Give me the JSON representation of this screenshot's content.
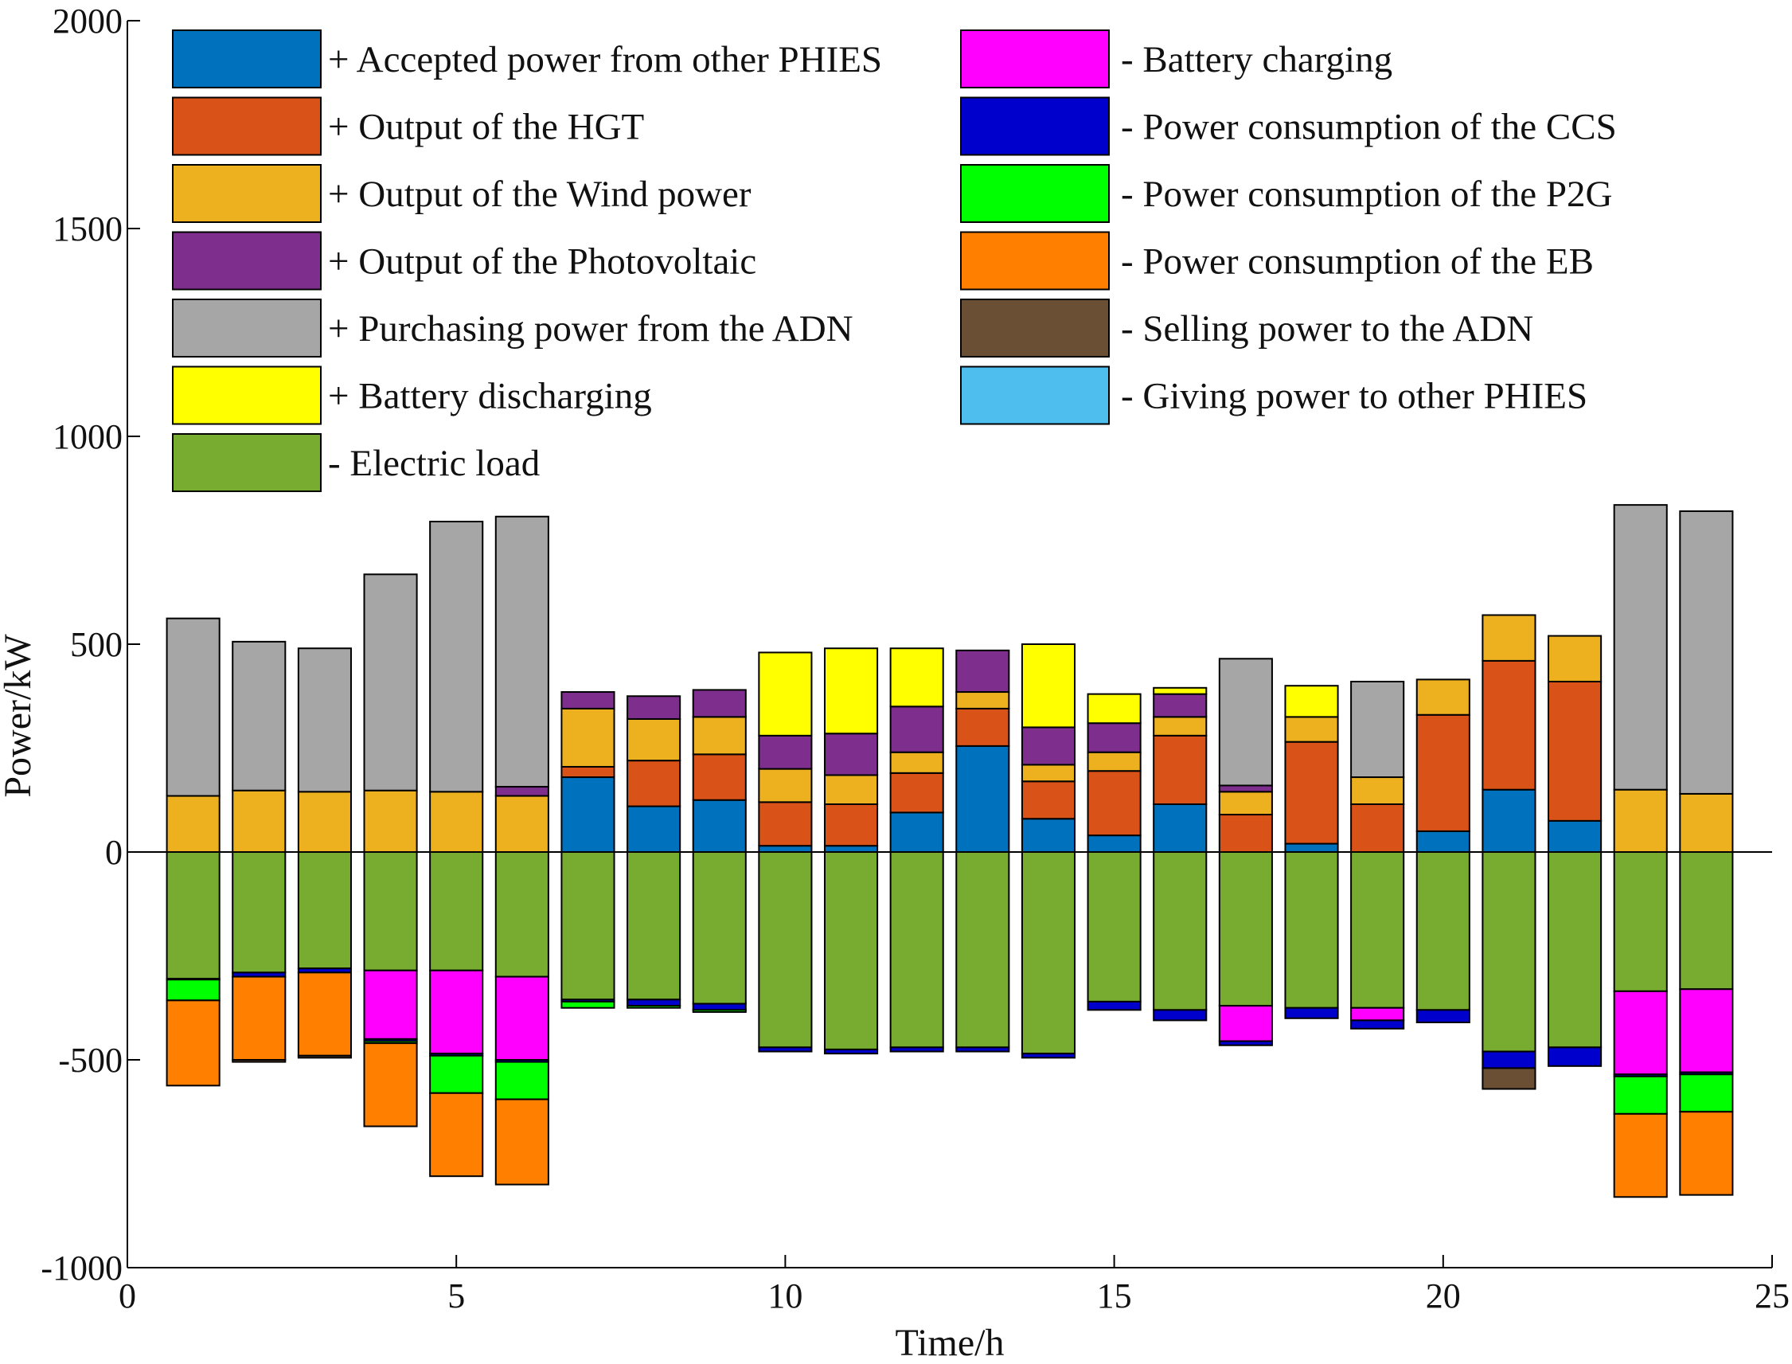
{
  "chart_data": {
    "type": "bar",
    "stacked": true,
    "title": "",
    "xlabel": "Time/h",
    "ylabel": "Power/kW",
    "xlim": [
      0,
      25
    ],
    "ylim": [
      -1000,
      2000
    ],
    "xticks": [
      0,
      5,
      10,
      15,
      20,
      25
    ],
    "yticks": [
      -1000,
      -500,
      0,
      500,
      1000,
      1500,
      2000
    ],
    "x": [
      1,
      2,
      3,
      4,
      5,
      6,
      7,
      8,
      9,
      10,
      11,
      12,
      13,
      14,
      15,
      16,
      17,
      18,
      19,
      20,
      21,
      22,
      23,
      24
    ],
    "legend_position": "top",
    "series": [
      {
        "name": "+ Accepted power from other PHIES",
        "sign": "positive",
        "color": "#0072BD",
        "values": [
          0,
          0,
          0,
          0,
          0,
          0,
          180,
          110,
          125,
          15,
          15,
          95,
          255,
          80,
          40,
          115,
          0,
          20,
          0,
          50,
          150,
          75,
          0,
          0
        ]
      },
      {
        "name": "+ Output of the HGT",
        "sign": "positive",
        "color": "#D95319",
        "values": [
          0,
          0,
          0,
          0,
          0,
          0,
          25,
          110,
          110,
          105,
          100,
          95,
          90,
          90,
          155,
          165,
          90,
          245,
          115,
          280,
          310,
          335,
          0,
          0
        ]
      },
      {
        "name": "+ Output of the Wind power",
        "sign": "positive",
        "color": "#EDB120",
        "values": [
          135,
          148,
          145,
          148,
          145,
          135,
          140,
          100,
          90,
          80,
          70,
          50,
          40,
          40,
          45,
          45,
          55,
          60,
          65,
          85,
          110,
          110,
          150,
          140
        ]
      },
      {
        "name": "+ Output of the Photovoltaic",
        "sign": "positive",
        "color": "#7E2F8E",
        "values": [
          0,
          0,
          0,
          0,
          0,
          22,
          40,
          55,
          65,
          80,
          100,
          110,
          100,
          90,
          70,
          55,
          15,
          0,
          0,
          0,
          0,
          0,
          0,
          0
        ]
      },
      {
        "name": "+ Purchasing power from the ADN",
        "sign": "positive",
        "color": "#A6A6A6",
        "values": [
          427,
          358,
          345,
          520,
          650,
          650,
          0,
          0,
          0,
          0,
          0,
          0,
          0,
          0,
          0,
          0,
          305,
          0,
          230,
          0,
          0,
          0,
          685,
          680
        ]
      },
      {
        "name": "+ Battery discharging",
        "sign": "positive",
        "color": "#FFFF00",
        "values": [
          0,
          0,
          0,
          0,
          0,
          0,
          0,
          0,
          0,
          200,
          205,
          140,
          0,
          200,
          70,
          15,
          0,
          75,
          0,
          0,
          0,
          0,
          0,
          0
        ]
      },
      {
        "name": "- Electric load",
        "sign": "negative",
        "color": "#77AC30",
        "values": [
          305,
          290,
          280,
          285,
          285,
          300,
          355,
          355,
          365,
          470,
          475,
          470,
          470,
          485,
          360,
          380,
          370,
          375,
          375,
          380,
          480,
          470,
          335,
          330
        ]
      },
      {
        "name": "- Battery charging",
        "sign": "negative",
        "color": "#FF00FF",
        "values": [
          0,
          0,
          0,
          165,
          200,
          200,
          0,
          0,
          0,
          0,
          0,
          0,
          0,
          0,
          0,
          0,
          85,
          0,
          30,
          0,
          0,
          0,
          200,
          200
        ]
      },
      {
        "name": "- Power consumption of the CCS",
        "sign": "negative",
        "color": "#0000CC",
        "values": [
          2,
          10,
          10,
          5,
          5,
          5,
          5,
          15,
          15,
          10,
          10,
          10,
          10,
          10,
          20,
          25,
          10,
          25,
          20,
          30,
          40,
          45,
          5,
          5
        ]
      },
      {
        "name": "- Power consumption of the P2G",
        "sign": "negative",
        "color": "#00FF00",
        "values": [
          50,
          0,
          0,
          5,
          90,
          90,
          15,
          5,
          5,
          0,
          0,
          0,
          0,
          0,
          0,
          0,
          0,
          0,
          0,
          0,
          0,
          0,
          90,
          90
        ]
      },
      {
        "name": "- Power consumption of the EB",
        "sign": "negative",
        "color": "#FF8000",
        "values": [
          205,
          200,
          200,
          200,
          200,
          205,
          0,
          0,
          0,
          0,
          0,
          0,
          0,
          0,
          0,
          0,
          0,
          0,
          0,
          0,
          0,
          0,
          200,
          200
        ]
      },
      {
        "name": "- Selling power to the ADN",
        "sign": "negative",
        "color": "#6B4F35",
        "values": [
          0,
          5,
          5,
          0,
          0,
          0,
          0,
          0,
          0,
          0,
          0,
          0,
          0,
          0,
          0,
          0,
          0,
          0,
          0,
          0,
          50,
          0,
          0,
          0
        ]
      },
      {
        "name": "- Giving power to other PHIES",
        "sign": "negative",
        "color": "#4DBEEE",
        "values": [
          0,
          0,
          0,
          0,
          0,
          0,
          0,
          0,
          0,
          0,
          0,
          0,
          0,
          0,
          0,
          0,
          0,
          0,
          0,
          0,
          0,
          0,
          0,
          0
        ]
      }
    ]
  }
}
